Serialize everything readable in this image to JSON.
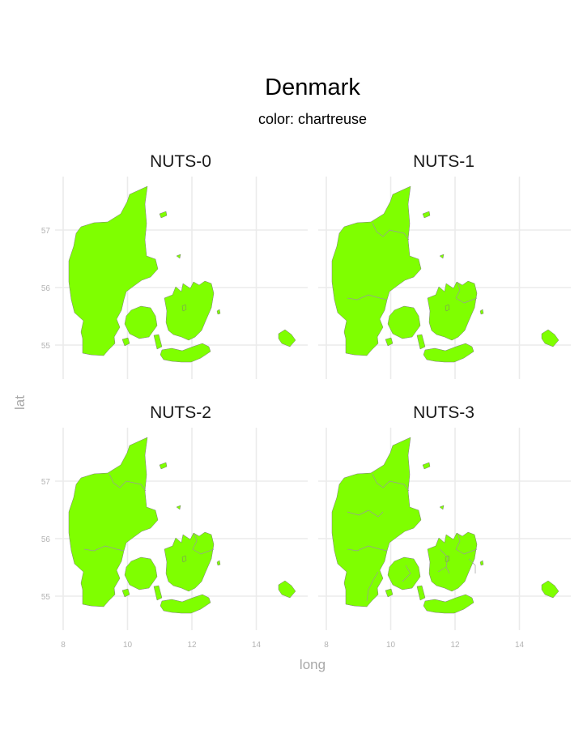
{
  "title": "Denmark",
  "subtitle": "color: chartreuse",
  "fill_color": "#7fff00",
  "axes": {
    "x_label": "long",
    "y_label": "lat",
    "x_ticks": [
      "8",
      "10",
      "12",
      "14"
    ],
    "y_ticks": [
      "55",
      "56",
      "57"
    ],
    "x_range": [
      7.7,
      15.6
    ],
    "y_range": [
      54.45,
      57.95
    ]
  },
  "panels": [
    {
      "label": "NUTS-0",
      "regions": 1
    },
    {
      "label": "NUTS-1",
      "regions": 5
    },
    {
      "label": "NUTS-2",
      "regions": 5
    },
    {
      "label": "NUTS-3",
      "regions": 11
    }
  ]
}
